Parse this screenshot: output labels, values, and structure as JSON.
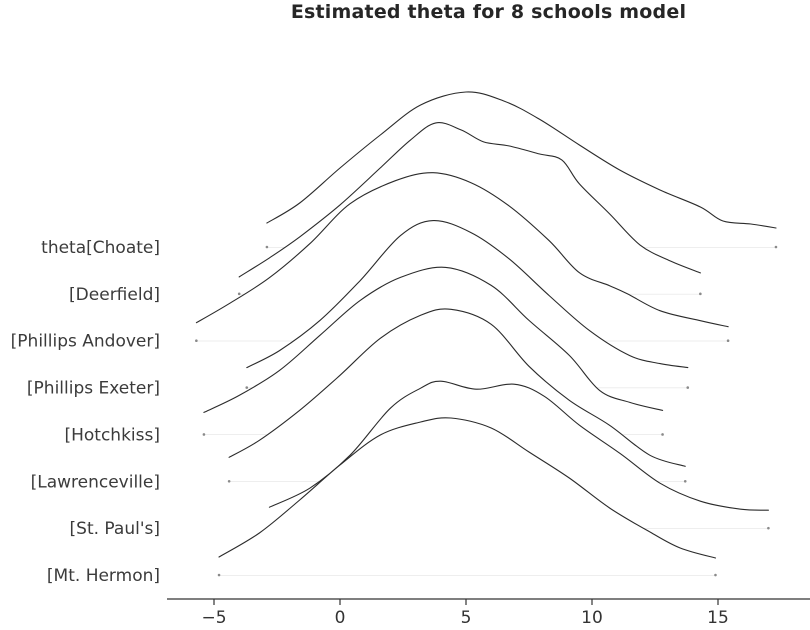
{
  "title": "Estimated theta for 8 schools model",
  "colors": {
    "background": "#ffffff",
    "curve_stroke": "#2b2b2b",
    "curve_fill": "#ffffff",
    "baseline_line": "#dcdcdc",
    "endpoint_dot": "#8a8a8a",
    "axis": "#333333",
    "label_text": "#3b3b3b",
    "title_text": "#262626"
  },
  "chart_data": {
    "type": "ridgeline",
    "title": "Estimated theta for 8 schools model",
    "xlabel": "",
    "ylabel": "",
    "x_ticks": [
      -5,
      0,
      5,
      10,
      15
    ],
    "x_range": [
      -6.9,
      18.7
    ],
    "grid": false,
    "legend": "none",
    "note": "Each series is a KDE of posterior theta per school; points are [theta_value, relative_density_height_px]; a faint baseline segment spans the data range with small dots at both ends.",
    "series": [
      {
        "label": "theta[Choate]",
        "points": [
          [
            -2.9,
            24
          ],
          [
            -1.6,
            44
          ],
          [
            0,
            79
          ],
          [
            1.6,
            112
          ],
          [
            3.2,
            142
          ],
          [
            5.0,
            155
          ],
          [
            6.5,
            146
          ],
          [
            7.9,
            128
          ],
          [
            9.5,
            102
          ],
          [
            11.1,
            77
          ],
          [
            12.7,
            57
          ],
          [
            14.3,
            40
          ],
          [
            15.2,
            26
          ],
          [
            16.3,
            23
          ],
          [
            17.3,
            19
          ]
        ]
      },
      {
        "label": "[Deerfield]",
        "points": [
          [
            -4.0,
            17
          ],
          [
            -2.8,
            36
          ],
          [
            -1.6,
            57
          ],
          [
            0,
            89
          ],
          [
            1.6,
            126
          ],
          [
            2.8,
            154
          ],
          [
            3.8,
            171
          ],
          [
            4.8,
            164
          ],
          [
            5.7,
            152
          ],
          [
            6.7,
            148
          ],
          [
            7.9,
            140
          ],
          [
            8.8,
            134
          ],
          [
            9.5,
            110
          ],
          [
            10.7,
            80
          ],
          [
            11.9,
            49
          ],
          [
            13.1,
            33
          ],
          [
            14.3,
            21
          ]
        ]
      },
      {
        "label": "[Phillips Andover]",
        "points": [
          [
            -5.7,
            18
          ],
          [
            -4.4,
            37
          ],
          [
            -2.8,
            63
          ],
          [
            -1.2,
            97
          ],
          [
            0.4,
            137
          ],
          [
            2.2,
            160
          ],
          [
            3.7,
            168
          ],
          [
            5.2,
            158
          ],
          [
            6.7,
            135
          ],
          [
            8.3,
            100
          ],
          [
            9.5,
            68
          ],
          [
            10.7,
            55
          ],
          [
            11.4,
            47
          ],
          [
            12.7,
            30
          ],
          [
            14.3,
            20
          ],
          [
            15.4,
            14
          ]
        ]
      },
      {
        "label": "[Phillips Exeter]",
        "points": [
          [
            -3.7,
            20
          ],
          [
            -2.4,
            37
          ],
          [
            -0.8,
            67
          ],
          [
            0.8,
            107
          ],
          [
            2.4,
            152
          ],
          [
            3.7,
            167
          ],
          [
            5.2,
            155
          ],
          [
            6.7,
            129
          ],
          [
            8.3,
            92
          ],
          [
            9.9,
            57
          ],
          [
            11.5,
            32
          ],
          [
            12.7,
            24
          ],
          [
            13.8,
            20
          ]
        ]
      },
      {
        "label": "[Hotchkiss]",
        "points": [
          [
            -5.4,
            22
          ],
          [
            -4.0,
            39
          ],
          [
            -2.4,
            64
          ],
          [
            -0.8,
            99
          ],
          [
            0.8,
            134
          ],
          [
            2.4,
            157
          ],
          [
            4.2,
            167
          ],
          [
            6.0,
            149
          ],
          [
            7.5,
            114
          ],
          [
            9.1,
            79
          ],
          [
            10.3,
            44
          ],
          [
            11.5,
            32
          ],
          [
            12.8,
            24
          ]
        ]
      },
      {
        "label": "[Lawrenceville]",
        "points": [
          [
            -4.4,
            24
          ],
          [
            -3.2,
            41
          ],
          [
            -1.6,
            71
          ],
          [
            0,
            106
          ],
          [
            1.6,
            143
          ],
          [
            3.2,
            166
          ],
          [
            4.4,
            172
          ],
          [
            6.0,
            157
          ],
          [
            7.5,
            115
          ],
          [
            9.1,
            81
          ],
          [
            10.7,
            56
          ],
          [
            12.3,
            26
          ],
          [
            13.7,
            15
          ]
        ]
      },
      {
        "label": "[St. Paul's]",
        "points": [
          [
            -2.8,
            21
          ],
          [
            -1.2,
            40
          ],
          [
            0.4,
            73
          ],
          [
            2.0,
            120
          ],
          [
            3.2,
            140
          ],
          [
            4.0,
            147
          ],
          [
            5.4,
            139
          ],
          [
            6.9,
            144
          ],
          [
            8.1,
            132
          ],
          [
            9.5,
            103
          ],
          [
            11.1,
            75
          ],
          [
            12.7,
            45
          ],
          [
            14.3,
            27
          ],
          [
            15.9,
            19
          ],
          [
            17.0,
            18
          ]
        ]
      },
      {
        "label": "[Mt. Hermon]",
        "points": [
          [
            -4.8,
            18
          ],
          [
            -3.2,
            42
          ],
          [
            -1.6,
            75
          ],
          [
            0,
            110
          ],
          [
            1.6,
            140
          ],
          [
            3.2,
            153
          ],
          [
            4.4,
            157
          ],
          [
            6.0,
            147
          ],
          [
            7.5,
            123
          ],
          [
            9.1,
            97
          ],
          [
            10.7,
            67
          ],
          [
            12.3,
            43
          ],
          [
            13.5,
            27
          ],
          [
            14.9,
            17
          ]
        ]
      }
    ]
  },
  "x_axis": {
    "tick_labels": [
      "−5",
      "0",
      "5",
      "10",
      "15"
    ]
  }
}
